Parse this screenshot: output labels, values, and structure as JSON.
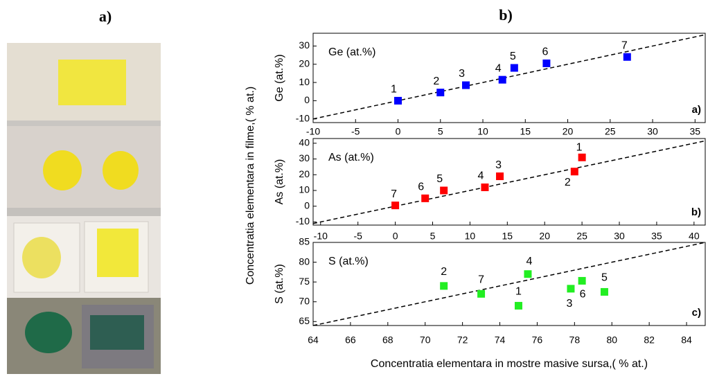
{
  "header": {
    "left_label": "a)",
    "right_label": "b)"
  },
  "y_label": "Concentratia elementara in filme,( % at.)",
  "x_label": "Concentratia elementara in mostre masive sursa,( % at.)",
  "chart_data": [
    {
      "type": "scatter",
      "panel_label": "a)",
      "annotation": "Ge (at.%)",
      "ylabel": "Ge (at.%)",
      "color": "#0000ff",
      "identity_line": true,
      "x": [
        0,
        5,
        8,
        12.3,
        13.7,
        17.5,
        27
      ],
      "values": [
        0,
        4.5,
        8.5,
        11.5,
        18,
        20.5,
        24
      ],
      "point_labels": [
        "1",
        "2",
        "3",
        "4",
        "5",
        "6",
        "7"
      ],
      "xlim": [
        -10,
        36.2
      ],
      "xticks": [
        -10,
        -5,
        0,
        5,
        10,
        15,
        20,
        25,
        30,
        35
      ],
      "ylim": [
        -12,
        37
      ],
      "yticks": [
        -10,
        0,
        10,
        20,
        30
      ]
    },
    {
      "type": "scatter",
      "panel_label": "b)",
      "annotation": "As (at.%)",
      "ylabel": "As (at.%)",
      "color": "#ff0000",
      "identity_line": true,
      "x": [
        25,
        24,
        14,
        12,
        6.5,
        4,
        0
      ],
      "values": [
        31,
        22,
        19,
        12,
        10,
        5,
        0.5
      ],
      "point_labels": [
        "1",
        "2",
        "3",
        "4",
        "5",
        "6",
        "7"
      ],
      "xlim": [
        -11,
        41.5
      ],
      "xticks": [
        -10,
        -5,
        0,
        5,
        10,
        15,
        20,
        25,
        30,
        35,
        40
      ],
      "ylim": [
        -12,
        43
      ],
      "yticks": [
        -10,
        0,
        10,
        20,
        30,
        40
      ]
    },
    {
      "type": "scatter",
      "panel_label": "c)",
      "annotation": "S (at.%)",
      "ylabel": "S (at.%)",
      "color": "#22ee22",
      "identity_line": true,
      "x": [
        75,
        71,
        77.8,
        75.5,
        79.6,
        78.4,
        73
      ],
      "values": [
        69,
        74,
        73.3,
        77,
        72.5,
        75.3,
        72
      ],
      "point_labels": [
        "1",
        "2",
        "3",
        "4",
        "5",
        "6",
        "7"
      ],
      "xlim": [
        64,
        85
      ],
      "xticks": [
        64,
        66,
        68,
        70,
        72,
        74,
        76,
        78,
        80,
        82,
        84
      ],
      "ylim": [
        64,
        85
      ],
      "yticks": [
        65,
        70,
        75,
        80,
        85
      ]
    }
  ]
}
